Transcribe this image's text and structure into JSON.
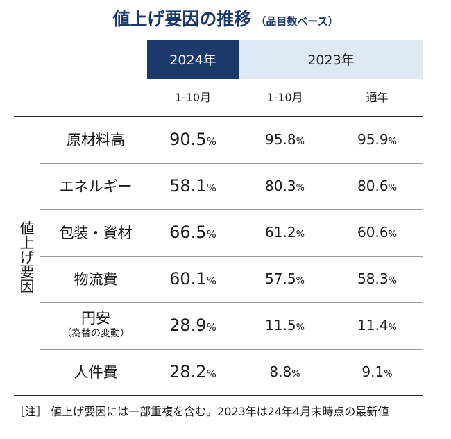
{
  "title": {
    "main": "値上げ要因の推移",
    "sub": "（品目数ベース）"
  },
  "chart_data": {
    "type": "table",
    "columns": [
      {
        "year": "2024年",
        "period": "1-10月"
      },
      {
        "year": "2023年",
        "period": "1-10月"
      },
      {
        "year": "2023年",
        "period": "通年"
      }
    ],
    "group_label": "値上げ要因",
    "rows": [
      {
        "label": "原材料高",
        "values": [
          "90.5",
          "95.8",
          "95.9"
        ]
      },
      {
        "label": "エネルギー",
        "values": [
          "58.1",
          "80.3",
          "80.6"
        ]
      },
      {
        "label": "包装・資材",
        "values": [
          "66.5",
          "61.2",
          "60.6"
        ]
      },
      {
        "label": "物流費",
        "values": [
          "60.1",
          "57.5",
          "58.3"
        ]
      },
      {
        "label": "円安",
        "note": "（為替の変動）",
        "values": [
          "28.9",
          "11.5",
          "11.4"
        ]
      },
      {
        "label": "人件費",
        "values": [
          "28.2",
          "8.8",
          "9.1"
        ]
      }
    ],
    "unit": "%"
  },
  "header": {
    "year_2024": "2024年",
    "year_2023": "2023年"
  },
  "footnote": "［注］ 値上げ要因には一部重複を含む。2023年は24年4月末時点の最新値",
  "colors": {
    "navy": "#1b3a6b",
    "light_blue": "#dfe9f5"
  }
}
